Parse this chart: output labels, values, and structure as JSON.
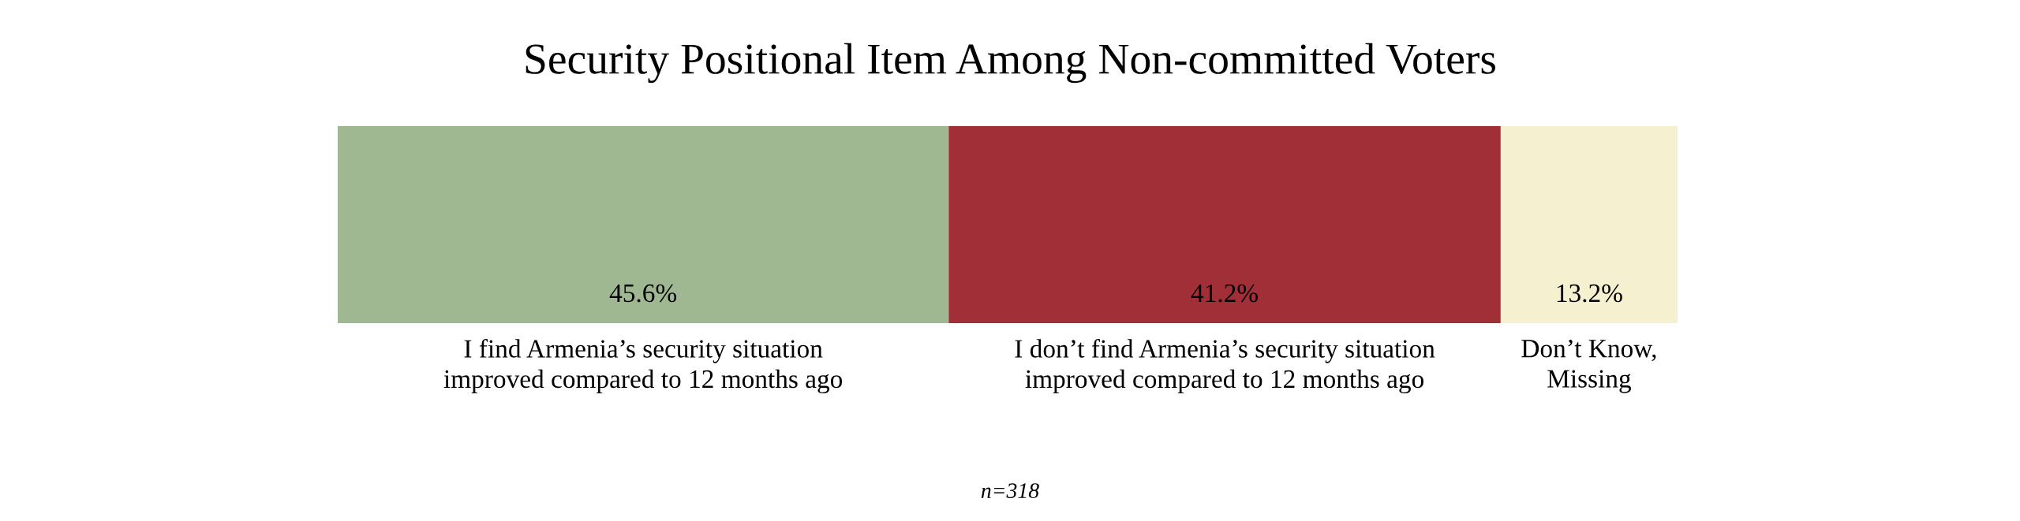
{
  "chart_data": {
    "type": "bar",
    "orientation": "horizontal",
    "stacked": true,
    "title": "Security Positional Item Among Non-committed Voters",
    "categories": [
      null
    ],
    "xlim": [
      0,
      100
    ],
    "series": [
      {
        "name": "I find Armenia’s security situation\nimproved compared to 12 months ago",
        "color": "#9fb891",
        "values": [
          45.6
        ],
        "value_labels": [
          "45.6%"
        ]
      },
      {
        "name": "I don’t find Armenia’s security situation\nimproved compared to 12 months ago",
        "color": "#a02f37",
        "values": [
          41.2
        ],
        "value_labels": [
          "41.2%"
        ]
      },
      {
        "name": "Don’t Know,\nMissing",
        "color": "#f5f1d0",
        "values": [
          13.2
        ],
        "value_labels": [
          "13.2%"
        ]
      }
    ],
    "annotations": [
      "n=318"
    ]
  }
}
